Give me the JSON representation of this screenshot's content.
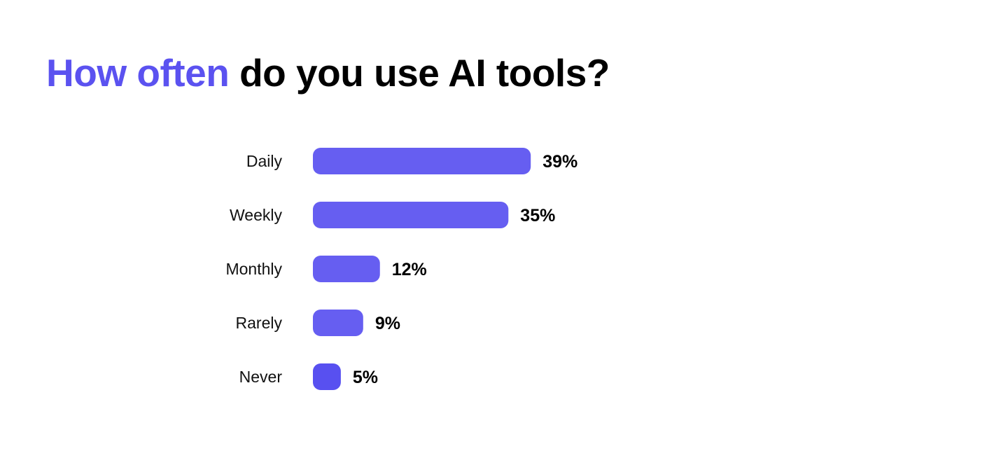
{
  "chart_data": {
    "type": "bar",
    "orientation": "horizontal",
    "title_highlight": "How often",
    "title_rest": "do you use AI tools?",
    "categories": [
      "Daily",
      "Weekly",
      "Monthly",
      "Rarely",
      "Never"
    ],
    "values": [
      39,
      35,
      12,
      9,
      5
    ],
    "value_labels": [
      "39%",
      "35%",
      "12%",
      "9%",
      "5%"
    ],
    "xlabel": "",
    "ylabel": "",
    "xlim": [
      0,
      100
    ],
    "grid": false,
    "colors": {
      "title_accent": "#5B52F0",
      "bar": "#665EF1",
      "bar_last": "#5850F0"
    }
  }
}
